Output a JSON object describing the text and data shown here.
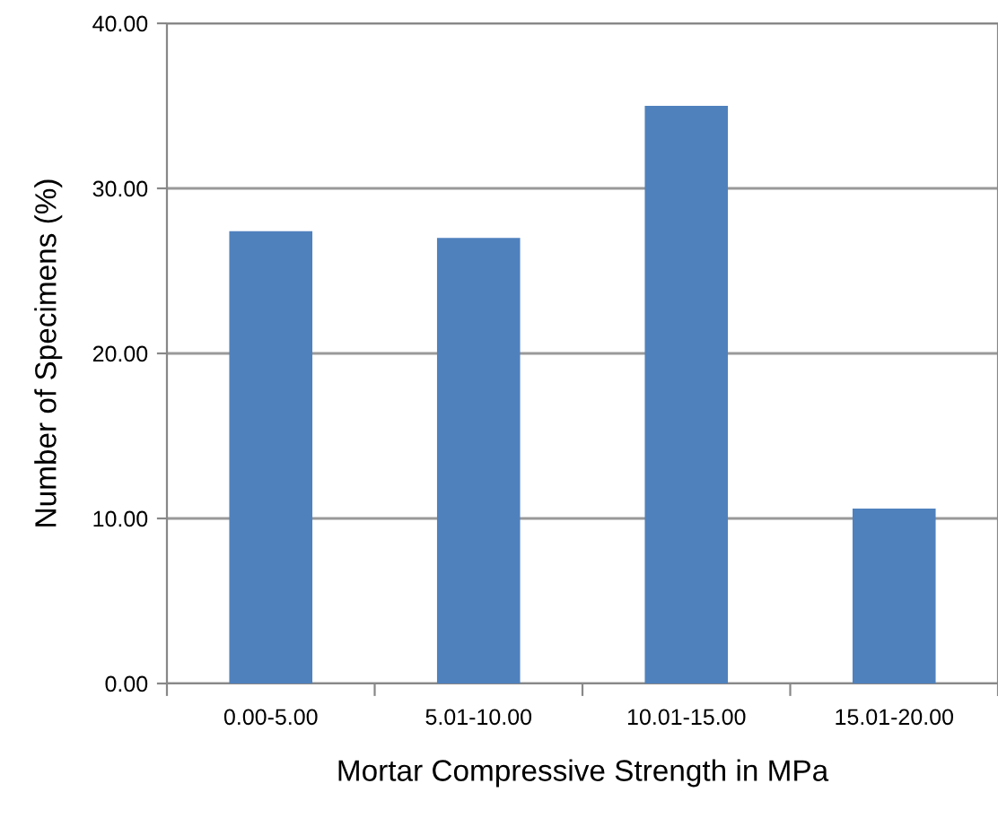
{
  "chart_data": {
    "type": "bar",
    "xlabel": "Mortar Compressive Strength in MPa",
    "ylabel": "Number of Specimens (%)",
    "categories": [
      "0.00-5.00",
      "5.01-10.00",
      "10.01-15.00",
      "15.01-20.00"
    ],
    "values": [
      27.4,
      27.0,
      35.0,
      10.6
    ],
    "color": "#4f81bd",
    "ylim": [
      0,
      40
    ],
    "yticks": [
      {
        "value": 0,
        "label": "0.00"
      },
      {
        "value": 10,
        "label": "10.00"
      },
      {
        "value": 20,
        "label": "20.00"
      },
      {
        "value": 30,
        "label": "30.00"
      },
      {
        "value": 40,
        "label": "40.00"
      }
    ],
    "grid": "y"
  }
}
